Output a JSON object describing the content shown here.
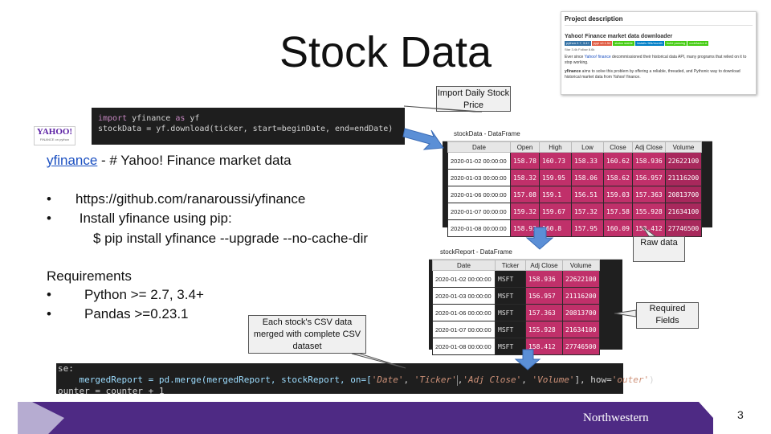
{
  "slide": {
    "title": "Stock Data",
    "page_number": "3",
    "footer_logo": "Northwestern"
  },
  "logo": {
    "name": "YAHOO!",
    "sub": "FINANCE on python"
  },
  "code_top": {
    "line1_kw1": "import",
    "line1_mod": " yfinance ",
    "line1_kw2": "as",
    "line1_alias": " yf",
    "line2": "stockData = yf.download(ticker, start=beginDate, end=endDate)"
  },
  "code_bottom": {
    "line0": "se:",
    "line1_a": "    mergedReport = pd.merge(mergedReport, stockReport, on=[",
    "line1_s1": "'Date'",
    "line1_b": ", ",
    "line1_s2": "'Ticker'",
    "line1_c": ",",
    "line1_s3": "'Adj Close'",
    "line1_d": ", ",
    "line1_s4": "'Volume'",
    "line1_e": "], how=",
    "line1_s5": "'outer'",
    "line1_f": ")",
    "line2": "ounter = counter + 1"
  },
  "text": {
    "link": "yfinance",
    "desc": " - # Yahoo! Finance  market data",
    "bullet1": "https://github.com/ranaroussi/yfinance",
    "bullet2": " Install yfinance using pip:",
    "pip": "$ pip install yfinance --upgrade --no-cache-dir",
    "requirements": "Requirements",
    "bullet3": "Python >= 2.7, 3.4+",
    "bullet4": "Pandas >=0.23.1",
    "bullet_char": "•"
  },
  "callouts": {
    "import": "Import Daily Stock Price",
    "raw": "Raw data",
    "required": "Required Fields",
    "merged": "Each stock's CSV data merged  with complete CSV dataset"
  },
  "project": {
    "heading": "Project description",
    "subtitle": "Yahoo! Finance market data downloader",
    "badges": [
      {
        "text": "python 2.7, 3.4+",
        "color": "#3572a5"
      },
      {
        "text": "pypi v0.1.54",
        "color": "#e05d44"
      },
      {
        "text": "status stable",
        "color": "#4c1"
      },
      {
        "text": "installs 96k/month",
        "color": "#007ec6"
      },
      {
        "text": "build passing",
        "color": "#4c1"
      },
      {
        "text": "codefactor A",
        "color": "#4c1"
      }
    ],
    "star_row": "Star 3.4k   Follow 8.6k",
    "para1_a": "Ever since ",
    "para1_link": "Yahoo! finance",
    "para1_b": " decommissioned their historical data API, many programs that relied on it to stop working.",
    "para2_bold": "yfinance",
    "para2": " aims to solve this problem by offering a reliable, threaded, and Pythonic way to download historical market data from Yahoo! finance."
  },
  "stock_data": {
    "title": "stockData - DataFrame",
    "columns": [
      "Date",
      "Open",
      "High",
      "Low",
      "Close",
      "Adj Close",
      "Volume"
    ],
    "rows": [
      [
        "2020-01-02 00:00:00",
        "158.78",
        "160.73",
        "158.33",
        "160.62",
        "158.936",
        "22622100"
      ],
      [
        "2020-01-03 00:00:00",
        "158.32",
        "159.95",
        "158.06",
        "158.62",
        "156.957",
        "21116200"
      ],
      [
        "2020-01-06 00:00:00",
        "157.08",
        "159.1",
        "156.51",
        "159.03",
        "157.363",
        "20813700"
      ],
      [
        "2020-01-07 00:00:00",
        "159.32",
        "159.67",
        "157.32",
        "157.58",
        "155.928",
        "21634100"
      ],
      [
        "2020-01-08 00:00:00",
        "158.93",
        "160.8",
        "157.95",
        "160.09",
        "158.412",
        "27746500"
      ]
    ]
  },
  "stock_report": {
    "title": "stockReport - DataFrame",
    "columns": [
      "Date",
      "Ticker",
      "Adj Close",
      "Volume"
    ],
    "rows": [
      [
        "2020-01-02 00:00:00",
        "MSFT",
        "158.936",
        "22622100"
      ],
      [
        "2020-01-03 00:00:00",
        "MSFT",
        "156.957",
        "21116200"
      ],
      [
        "2020-01-06 00:00:00",
        "MSFT",
        "157.363",
        "20813700"
      ],
      [
        "2020-01-07 00:00:00",
        "MSFT",
        "155.928",
        "21634100"
      ],
      [
        "2020-01-08 00:00:00",
        "MSFT",
        "158.412",
        "27746500"
      ]
    ]
  },
  "colors": {
    "footer_purple": "#4e2a84",
    "footer_light": "#b6acd1",
    "cell_magenta": "#c0306a",
    "arrow_blue": "#5b8fd6"
  }
}
